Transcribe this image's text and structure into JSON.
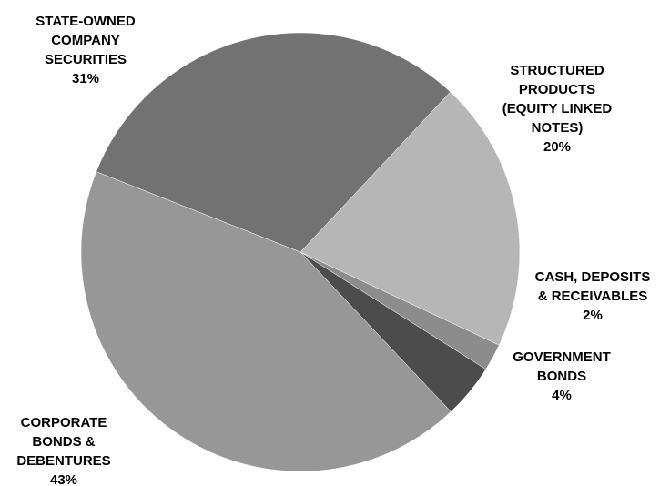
{
  "chart_data": {
    "type": "pie",
    "slices": [
      {
        "label_lines": [
          "STATE-OWNED",
          "COMPANY",
          "SECURITIES"
        ],
        "pct_label": "31%",
        "value": 31,
        "color": "#727272"
      },
      {
        "label_lines": [
          "STRUCTURED",
          "PRODUCTS",
          "(EQUITY LINKED",
          "NOTES)"
        ],
        "pct_label": "20%",
        "value": 20,
        "color": "#b6b6b6"
      },
      {
        "label_lines": [
          "CASH, DEPOSITS",
          "& RECEIVABLES"
        ],
        "pct_label": "2%",
        "value": 2,
        "color": "#8c8c8c"
      },
      {
        "label_lines": [
          "GOVERNMENT",
          "BONDS"
        ],
        "pct_label": "4%",
        "value": 4,
        "color": "#4c4c4c"
      },
      {
        "label_lines": [
          "CORPORATE",
          "BONDS &",
          "DEBENTURES"
        ],
        "pct_label": "43%",
        "value": 43,
        "color": "#979797"
      }
    ],
    "start_angle_deg": -68.5,
    "direction": "clockwise",
    "legend": "none"
  }
}
